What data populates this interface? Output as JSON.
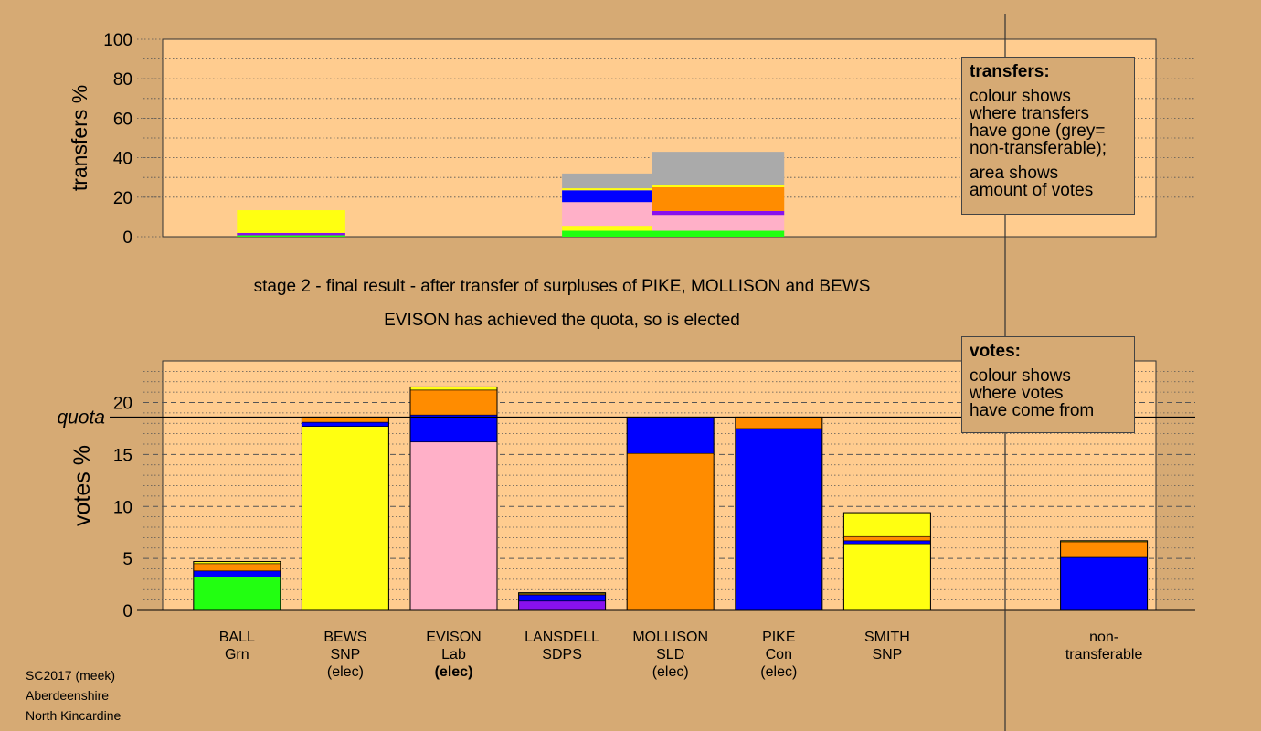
{
  "colors": {
    "background": "#d6aa74",
    "plot_bg": "#ffcc8f",
    "Grn": "#22ff11",
    "SNP": "#ffff11",
    "Lab": "#ffb0c8",
    "SDPS": "#8811ee",
    "SLD": "#ff8c00",
    "Con": "#0000ff",
    "nontransferable": "#aaaaaa"
  },
  "stage": {
    "line1": "stage 2 - final result - after transfer of surpluses of PIKE, MOLLISON and BEWS",
    "line2": "EVISON has achieved the quota, so is elected"
  },
  "legend_transfers": {
    "title": "transfers:",
    "lines": [
      "colour shows",
      "where transfers",
      "have gone (grey=",
      "non-transferable);"
    ],
    "lines2": [
      "area shows",
      "amount of votes"
    ]
  },
  "legend_votes": {
    "title": "votes:",
    "lines": [
      "colour shows",
      "where votes",
      "have come from"
    ]
  },
  "footer": {
    "line1": "SC2017 (meek)",
    "line2": "Aberdeenshire",
    "line3": "North Kincardine"
  },
  "chart_data": [
    {
      "type": "bar",
      "stacked": true,
      "ylabel": "transfers %",
      "ylim": [
        0,
        100
      ],
      "yticks": [
        0,
        20,
        40,
        60,
        80,
        100
      ],
      "grid": true,
      "series_order": [
        "Grn",
        "SNP",
        "Lab",
        "SDPS",
        "SLD",
        "Con",
        "nontransferable"
      ],
      "bars": [
        {
          "from": "BEWS",
          "x_range": [
            0.5,
            1.5
          ],
          "segments": [
            {
              "party": "Grn",
              "value": 0.7
            },
            {
              "party": "SDPS",
              "value": 1.2
            },
            {
              "party": "SNP",
              "value": 11.5
            }
          ]
        },
        {
          "from": "MOLLISON",
          "x_range": [
            3.5,
            4.33
          ],
          "segments": [
            {
              "party": "Grn",
              "value": 3
            },
            {
              "party": "SNP",
              "value": 2.5
            },
            {
              "party": "Lab",
              "value": 12
            },
            {
              "party": "Con",
              "value": 6
            },
            {
              "party": "SNP",
              "value": 1
            },
            {
              "party": "nontransferable",
              "value": 7.5
            }
          ]
        },
        {
          "from": "PIKE",
          "x_range": [
            4.33,
            5.55
          ],
          "segments": [
            {
              "party": "Grn",
              "value": 3
            },
            {
              "party": "Lab",
              "value": 8
            },
            {
              "party": "SDPS",
              "value": 2
            },
            {
              "party": "SLD",
              "value": 12
            },
            {
              "party": "SNP",
              "value": 1
            },
            {
              "party": "nontransferable",
              "value": 17
            }
          ]
        }
      ]
    },
    {
      "type": "bar",
      "stacked": true,
      "ylabel": "votes %",
      "ylim": [
        0,
        24
      ],
      "yticks": [
        0,
        5,
        10,
        15,
        20
      ],
      "quota": 18.6,
      "quota_label": "quota",
      "grid": true,
      "categories": [
        {
          "name": "BALL",
          "party": "Grn",
          "status": ""
        },
        {
          "name": "BEWS",
          "party": "SNP",
          "status": "(elec)"
        },
        {
          "name": "EVISON",
          "party": "Lab",
          "status": "(elec)",
          "status_bold": true
        },
        {
          "name": "LANSDELL",
          "party": "SDPS",
          "status": ""
        },
        {
          "name": "MOLLISON",
          "party": "SLD",
          "status": "(elec)"
        },
        {
          "name": "PIKE",
          "party": "Con",
          "status": "(elec)"
        },
        {
          "name": "SMITH",
          "party": "SNP",
          "status": ""
        },
        {
          "name": "",
          "party": "",
          "status": ""
        },
        {
          "name": "non-",
          "party": "transferable",
          "status": ""
        }
      ],
      "stacks": [
        [
          {
            "party": "Grn",
            "value": 3.2
          },
          {
            "party": "Con",
            "value": 0.6
          },
          {
            "party": "SLD",
            "value": 0.7
          },
          {
            "party": "SNP",
            "value": 0.2
          }
        ],
        [
          {
            "party": "SNP",
            "value": 17.7
          },
          {
            "party": "Con",
            "value": 0.4
          },
          {
            "party": "SLD",
            "value": 0.5
          }
        ],
        [
          {
            "party": "Lab",
            "value": 16.2
          },
          {
            "party": "Con",
            "value": 2.6
          },
          {
            "party": "SLD",
            "value": 2.4
          },
          {
            "party": "SNP",
            "value": 0.3
          }
        ],
        [
          {
            "party": "SDPS",
            "value": 0.9
          },
          {
            "party": "Con",
            "value": 0.6
          },
          {
            "party": "SLD",
            "value": 0.1
          },
          {
            "party": "SNP",
            "value": 0.1
          }
        ],
        [
          {
            "party": "SLD",
            "value": 15.1
          },
          {
            "party": "Con",
            "value": 3.5
          }
        ],
        [
          {
            "party": "Con",
            "value": 17.5
          },
          {
            "party": "SLD",
            "value": 1.1
          }
        ],
        [
          {
            "party": "SNP",
            "value": 6.4
          },
          {
            "party": "Con",
            "value": 0.3
          },
          {
            "party": "SLD",
            "value": 0.4
          },
          {
            "party": "SNP",
            "value": 2.3
          }
        ],
        [],
        [
          {
            "party": "Con",
            "value": 5.1
          },
          {
            "party": "SLD",
            "value": 1.5
          },
          {
            "party": "SNP",
            "value": 0.1
          }
        ]
      ]
    }
  ]
}
